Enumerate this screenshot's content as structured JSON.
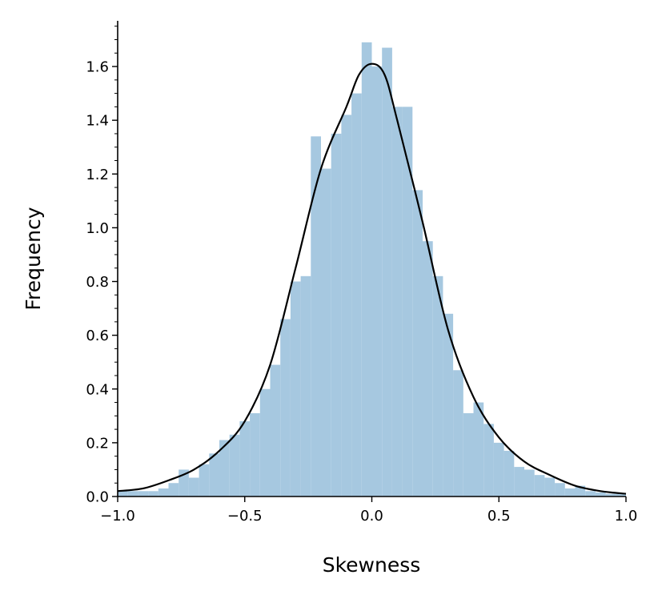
{
  "chart_data": {
    "type": "histogram",
    "x_label": "Skewness",
    "y_label": "Frequency",
    "bins": [
      -1.0,
      -0.96,
      -0.92,
      -0.88,
      -0.84,
      -0.8,
      -0.76,
      -0.72,
      -0.68,
      -0.64,
      -0.6,
      -0.56,
      -0.52,
      -0.48,
      -0.44,
      -0.4,
      -0.36,
      -0.32,
      -0.28,
      -0.24,
      -0.2,
      -0.16,
      -0.12,
      -0.08,
      -0.04,
      0.0,
      0.04,
      0.08,
      0.12,
      0.16,
      0.2,
      0.24,
      0.28,
      0.32,
      0.36,
      0.4,
      0.44,
      0.48,
      0.52,
      0.56,
      0.6,
      0.64,
      0.68,
      0.72,
      0.76,
      0.8,
      0.84,
      0.88,
      0.92,
      0.96,
      1.0
    ],
    "values": [
      0.02,
      0.02,
      0.02,
      0.02,
      0.03,
      0.05,
      0.1,
      0.07,
      0.12,
      0.16,
      0.21,
      0.23,
      0.28,
      0.31,
      0.4,
      0.49,
      0.66,
      0.8,
      0.82,
      1.34,
      1.22,
      1.35,
      1.42,
      1.5,
      1.69,
      1.6,
      1.67,
      1.45,
      1.45,
      1.14,
      0.95,
      0.82,
      0.68,
      0.47,
      0.31,
      0.35,
      0.27,
      0.2,
      0.17,
      0.11,
      0.1,
      0.08,
      0.07,
      0.05,
      0.03,
      0.04,
      0.02,
      0.015,
      0.01,
      0.01
    ],
    "color": "#a6c8e0",
    "kde": {
      "color": "#000000",
      "x": [
        -1.0,
        -0.9,
        -0.8,
        -0.7,
        -0.6,
        -0.5,
        -0.4,
        -0.3,
        -0.2,
        -0.1,
        -0.05,
        0.0,
        0.05,
        0.1,
        0.2,
        0.3,
        0.4,
        0.5,
        0.6,
        0.7,
        0.8,
        0.9,
        1.0
      ],
      "y": [
        0.02,
        0.03,
        0.06,
        0.1,
        0.17,
        0.28,
        0.49,
        0.85,
        1.22,
        1.45,
        1.57,
        1.61,
        1.57,
        1.4,
        1.02,
        0.62,
        0.37,
        0.22,
        0.13,
        0.08,
        0.04,
        0.02,
        0.01
      ]
    },
    "xlim": [
      -1.0,
      1.0
    ],
    "ylim": [
      0.0,
      1.77
    ],
    "xticks": [
      {
        "value": -1.0,
        "label": "−1.0"
      },
      {
        "value": -0.5,
        "label": "−0.5"
      },
      {
        "value": 0.0,
        "label": "0.0"
      },
      {
        "value": 0.5,
        "label": "0.5"
      },
      {
        "value": 1.0,
        "label": "1.0"
      }
    ],
    "yticks": [
      {
        "value": 0.0,
        "label": "0.0"
      },
      {
        "value": 0.2,
        "label": "0.2"
      },
      {
        "value": 0.4,
        "label": "0.4"
      },
      {
        "value": 0.6,
        "label": "0.6"
      },
      {
        "value": 0.8,
        "label": "0.8"
      },
      {
        "value": 1.0,
        "label": "1.0"
      },
      {
        "value": 1.2,
        "label": "1.2"
      },
      {
        "value": 1.4,
        "label": "1.4"
      },
      {
        "value": 1.6,
        "label": "1.6"
      }
    ],
    "yminorticks": [
      0.05,
      0.1,
      0.15,
      0.25,
      0.3,
      0.35,
      0.45,
      0.5,
      0.55,
      0.65,
      0.7,
      0.75,
      0.85,
      0.9,
      0.95,
      1.05,
      1.1,
      1.15,
      1.25,
      1.3,
      1.35,
      1.45,
      1.5,
      1.55,
      1.65,
      1.7,
      1.75
    ],
    "grid": false
  }
}
